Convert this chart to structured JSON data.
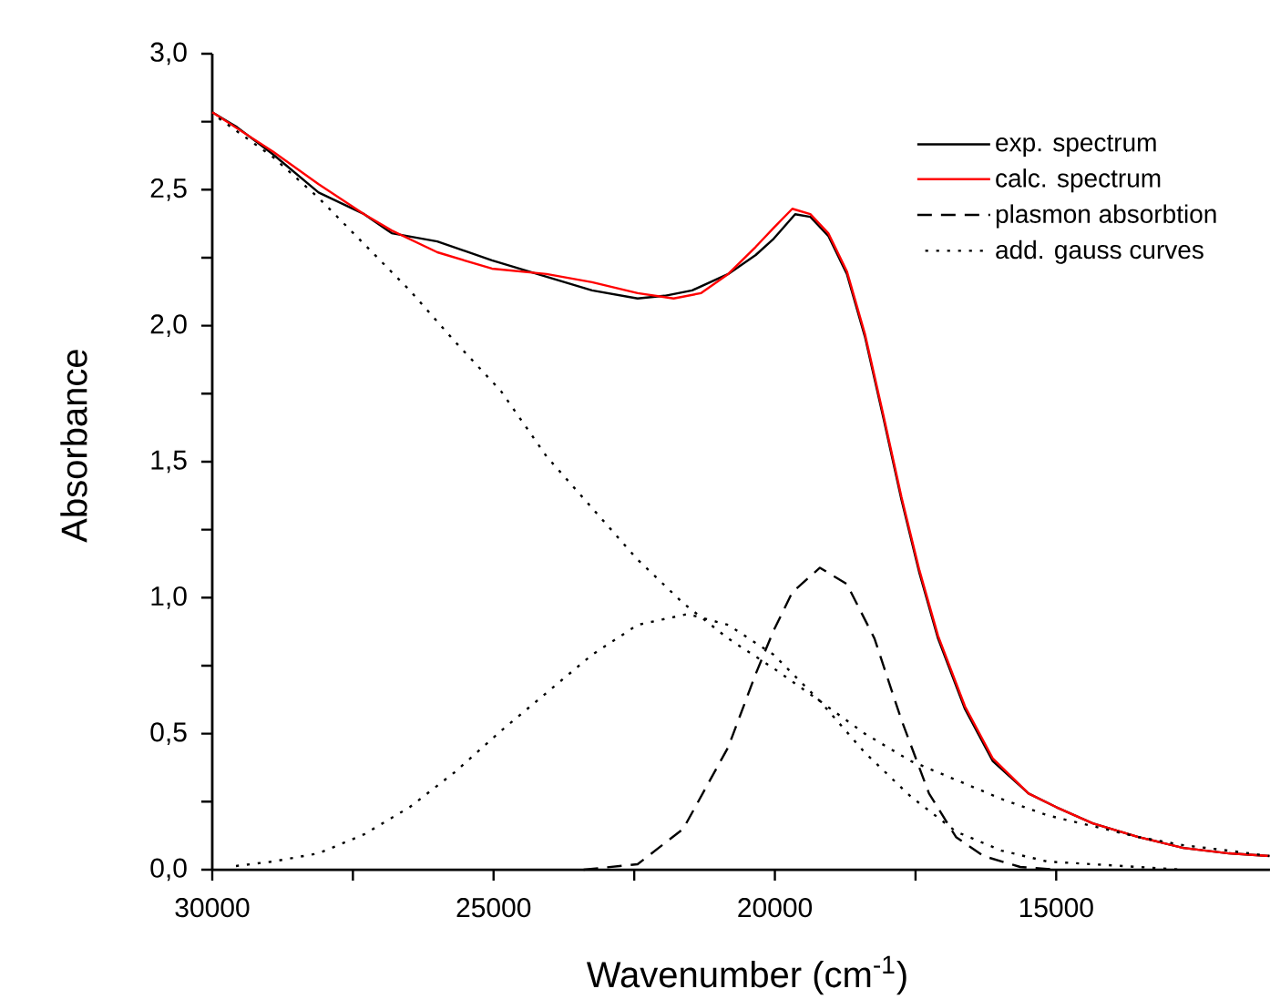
{
  "chart_data": {
    "type": "line",
    "xlabel": "Wavenumber (cm$^{-1}$)",
    "ylabel": "Absorbance",
    "xlim": [
      30000,
      11200
    ],
    "xticks": [
      30000,
      25000,
      20000,
      15000
    ],
    "ylim": [
      0,
      3
    ],
    "yticks": [
      {
        "value": 0,
        "label": "0,0"
      },
      {
        "value": 0.5,
        "label": "0,5"
      },
      {
        "value": 1,
        "label": "1,0"
      },
      {
        "value": 1.5,
        "label": "1,5"
      },
      {
        "value": 2,
        "label": "2,0"
      },
      {
        "value": 2.5,
        "label": "2,5"
      },
      {
        "value": 3,
        "label": "3,0"
      }
    ],
    "legend": "top right",
    "series": [
      {
        "name": "exp. spectrum",
        "color": "#000000",
        "line_style": "solid",
        "x": [
          30000,
          29560,
          28920,
          28110,
          27300,
          26810,
          26000,
          25030,
          24060,
          23250,
          22440,
          21960,
          21470,
          20830,
          20340,
          20020,
          19640,
          19370,
          19050,
          18720,
          18400,
          18070,
          17750,
          17430,
          17100,
          16620,
          16130,
          15490,
          15000,
          14350,
          13540,
          12740,
          11930,
          11210
        ],
        "values": [
          2.785,
          2.73,
          2.63,
          2.49,
          2.41,
          2.34,
          2.31,
          2.24,
          2.18,
          2.13,
          2.1,
          2.11,
          2.13,
          2.19,
          2.26,
          2.32,
          2.41,
          2.4,
          2.33,
          2.19,
          1.96,
          1.66,
          1.36,
          1.09,
          0.85,
          0.59,
          0.4,
          0.28,
          0.23,
          0.17,
          0.12,
          0.08,
          0.06,
          0.05
        ]
      },
      {
        "name": "calc. spectrum",
        "color": "#ff0000",
        "line_style": "solid",
        "x": [
          30000,
          28920,
          28110,
          27300,
          26810,
          26000,
          25030,
          24060,
          23250,
          22440,
          21800,
          21310,
          20830,
          20340,
          20020,
          19690,
          19370,
          19050,
          18720,
          18400,
          18070,
          17750,
          17430,
          17100,
          16620,
          16130,
          15490,
          15000,
          14350,
          13540,
          12740,
          11930,
          11210
        ],
        "values": [
          2.785,
          2.64,
          2.52,
          2.41,
          2.35,
          2.27,
          2.21,
          2.19,
          2.16,
          2.12,
          2.1,
          2.12,
          2.19,
          2.29,
          2.36,
          2.43,
          2.41,
          2.34,
          2.2,
          1.97,
          1.67,
          1.37,
          1.1,
          0.86,
          0.6,
          0.41,
          0.28,
          0.23,
          0.17,
          0.12,
          0.08,
          0.06,
          0.05
        ]
      },
      {
        "name": "plasmon absorbtion",
        "color": "#000000",
        "line_style": "dashed",
        "x": [
          23400,
          22440,
          21630,
          20830,
          20340,
          20020,
          19690,
          19200,
          18720,
          18230,
          17750,
          17260,
          16780,
          16290,
          15640,
          15000
        ],
        "values": [
          0,
          0.02,
          0.15,
          0.45,
          0.72,
          0.88,
          1.02,
          1.11,
          1.05,
          0.85,
          0.55,
          0.28,
          0.12,
          0.05,
          0.01,
          0
        ]
      },
      {
        "name": "add. gauss curves",
        "color": "#000000",
        "line_style": "dotted",
        "x": [
          30000,
          28920,
          28110,
          27300,
          26490,
          25680,
          24870,
          24060,
          23250,
          22440,
          21630,
          20830,
          20020,
          19200,
          18400,
          17590,
          16780,
          15970,
          15160,
          14350,
          13540,
          12740,
          11930,
          11210
        ],
        "values": [
          2.78,
          2.62,
          2.47,
          2.3,
          2.13,
          1.94,
          1.76,
          1.52,
          1.33,
          1.14,
          0.98,
          0.85,
          0.74,
          0.62,
          0.5,
          0.4,
          0.33,
          0.26,
          0.2,
          0.16,
          0.12,
          0.09,
          0.07,
          0.05
        ]
      },
      {
        "color": "#000000",
        "line_style": "dotted",
        "x": [
          29720,
          28920,
          28110,
          27300,
          26490,
          25680,
          24870,
          24060,
          23250,
          22440,
          21550,
          20830,
          20020,
          19200,
          18400,
          17590,
          16780,
          15970,
          15160,
          13540,
          12740
        ],
        "values": [
          0.01,
          0.03,
          0.06,
          0.13,
          0.23,
          0.36,
          0.51,
          0.65,
          0.79,
          0.9,
          0.94,
          0.9,
          0.79,
          0.62,
          0.43,
          0.27,
          0.14,
          0.07,
          0.03,
          0.01,
          0
        ]
      }
    ]
  }
}
